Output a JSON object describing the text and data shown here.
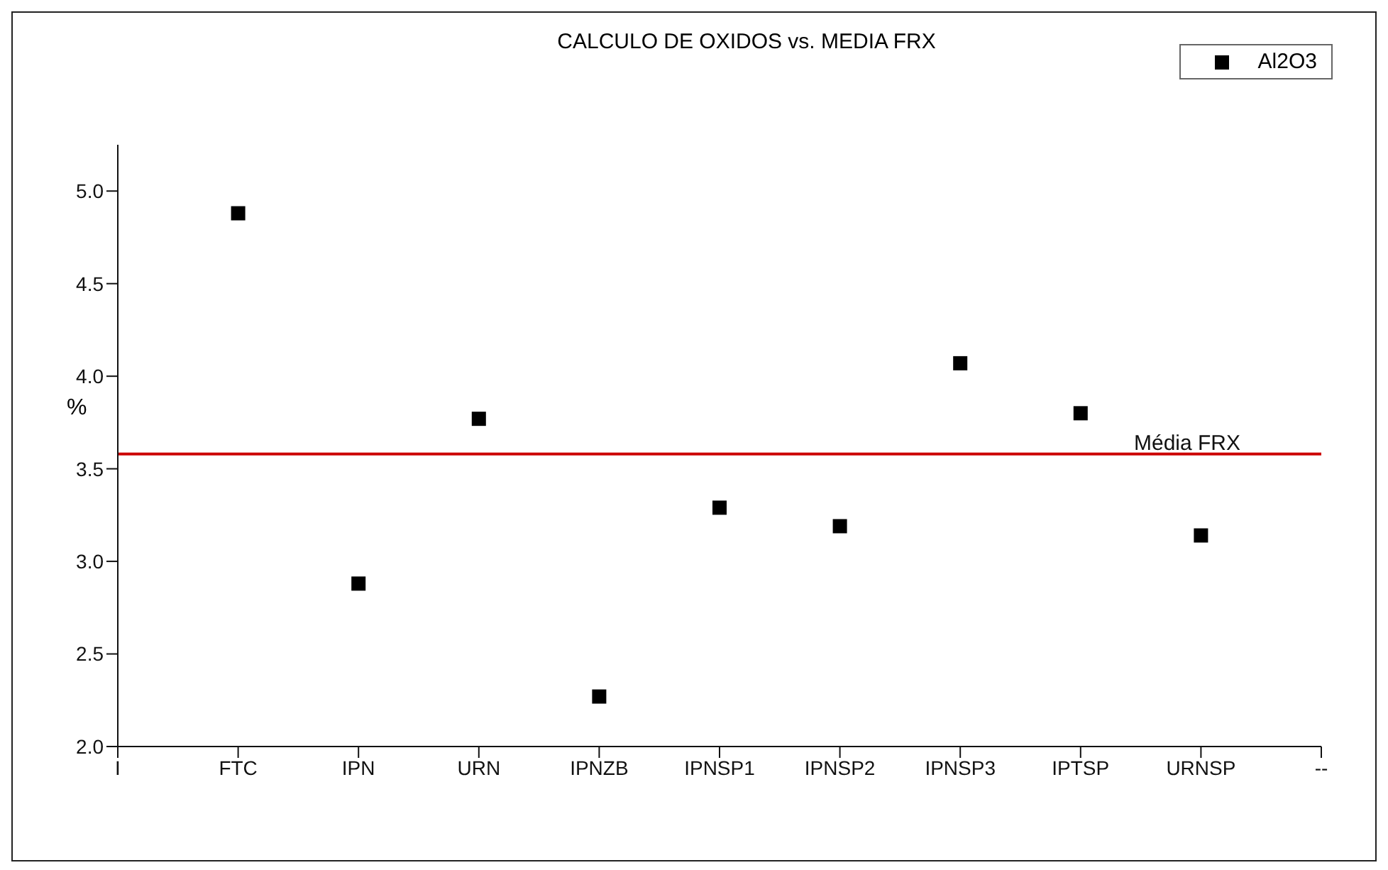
{
  "chart_data": {
    "type": "scatter",
    "title": "CALCULO DE OXIDOS vs. MEDIA FRX",
    "ylabel": "%",
    "categories": [
      "I",
      "FTC",
      "IPN",
      "URN",
      "IPNZB",
      "IPNSP1",
      "IPNSP2",
      "IPNSP3",
      "IPTSP",
      "URNSP",
      "--"
    ],
    "series": [
      {
        "name": "Al2O3",
        "color": "#000000",
        "values": [
          null,
          4.88,
          2.88,
          3.77,
          2.27,
          3.29,
          3.19,
          4.07,
          3.8,
          3.14,
          null
        ]
      }
    ],
    "ylim": [
      2.0,
      5.25
    ],
    "yticks": [
      {
        "value": 2,
        "label": "2.0"
      },
      2.5,
      {
        "value": 3,
        "label": "3.0"
      },
      3.5,
      {
        "value": 4,
        "label": "4.0"
      },
      4.5,
      {
        "value": 5,
        "label": "5.0"
      }
    ],
    "ref_lines": [
      {
        "axis": "y",
        "value": 3.58,
        "label": "Média FRX",
        "color": "#cc0000"
      }
    ],
    "legend": "top right",
    "marker": "square",
    "grid": false
  }
}
